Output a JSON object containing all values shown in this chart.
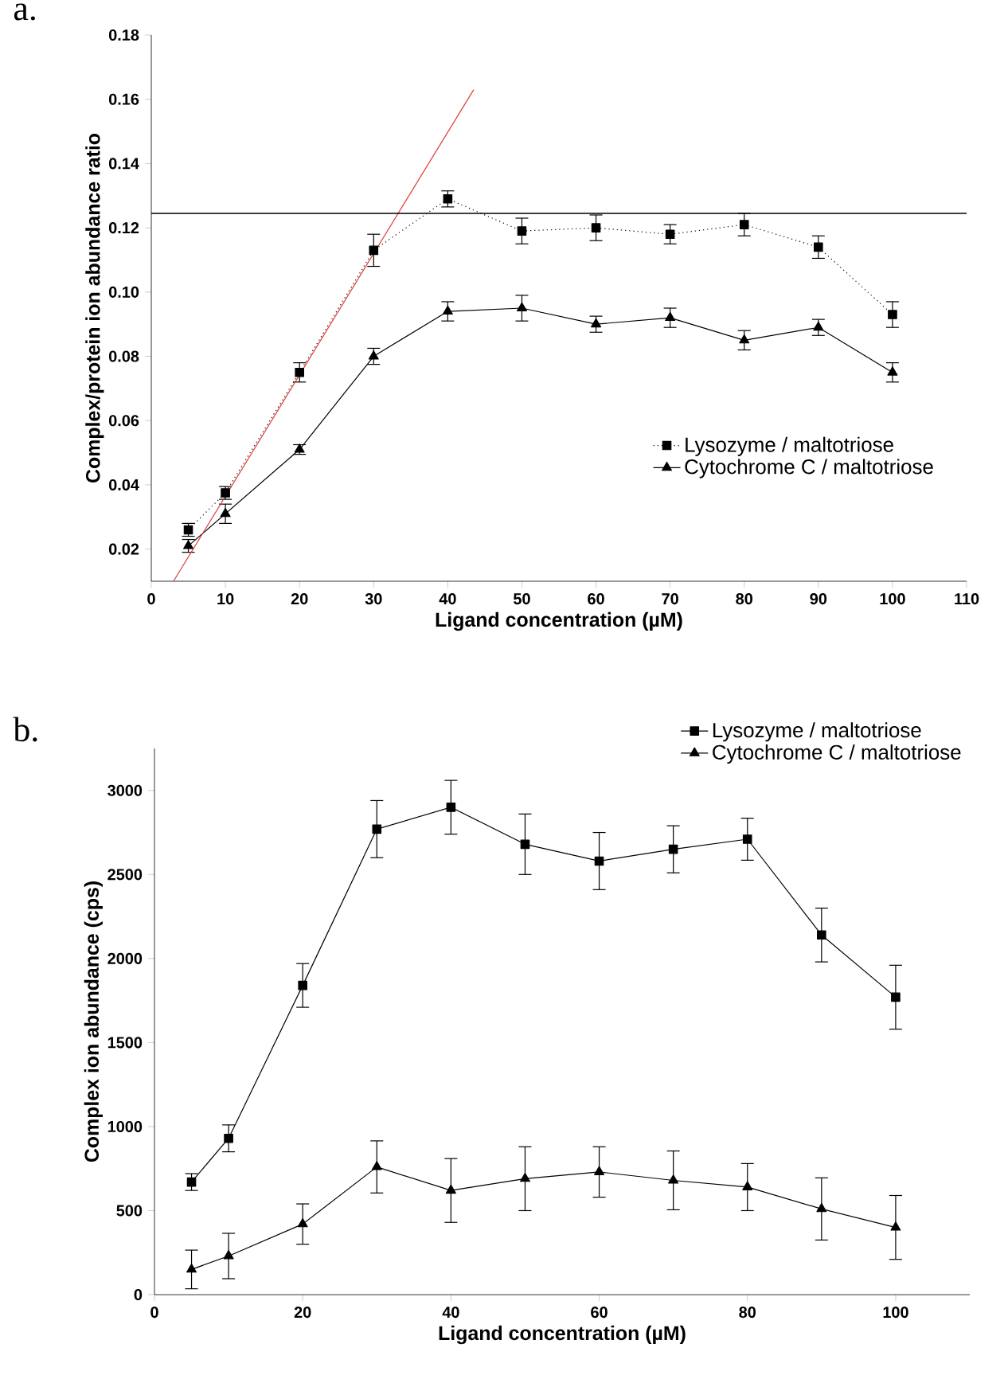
{
  "chart_data": [
    {
      "type": "line",
      "title": "a.",
      "xlabel": "Ligand concentration (µM)",
      "ylabel": "Complex/protein ion abundance ratio",
      "xlim": [
        0,
        110
      ],
      "xticks": [
        0,
        10,
        20,
        30,
        40,
        50,
        60,
        70,
        80,
        90,
        100,
        110
      ],
      "ylim": [
        0.01,
        0.18
      ],
      "yticks": [
        {
          "value": 0.02,
          "label": "0.02"
        },
        {
          "value": 0.04,
          "label": "0.04"
        },
        {
          "value": 0.06,
          "label": "0.06"
        },
        {
          "value": 0.08,
          "label": "0.08"
        },
        {
          "value": 0.1,
          "label": "0.10"
        },
        {
          "value": 0.12,
          "label": "0.12"
        },
        {
          "value": 0.14,
          "label": "0.14"
        },
        {
          "value": 0.16,
          "label": "0.16"
        },
        {
          "value": 0.18,
          "label": "0.18"
        }
      ],
      "legend": "bottom right",
      "x": [
        5,
        10,
        20,
        30,
        40,
        50,
        60,
        70,
        80,
        90,
        100
      ],
      "ref_lines": [
        {
          "axis": "y",
          "value": 0.1245,
          "color": "#000000"
        }
      ],
      "series": [
        {
          "name": "Lysozyme / maltotriose",
          "color": "#000000",
          "marker": "square",
          "line_style": "dotted",
          "values": [
            0.026,
            0.0375,
            0.075,
            0.113,
            0.129,
            0.119,
            0.12,
            0.118,
            0.121,
            0.114,
            0.093
          ],
          "errors": [
            0.002,
            0.002,
            0.003,
            0.005,
            0.0025,
            0.004,
            0.004,
            0.003,
            0.0035,
            0.0035,
            0.004
          ]
        },
        {
          "name": "Cytochrome C / maltotriose",
          "color": "#000000",
          "marker": "triangle",
          "line_style": "solid",
          "values": [
            0.021,
            0.031,
            0.051,
            0.08,
            0.094,
            0.095,
            0.09,
            0.092,
            0.085,
            0.089,
            0.075
          ],
          "errors": [
            0.002,
            0.003,
            0.0015,
            0.0025,
            0.003,
            0.004,
            0.0025,
            0.003,
            0.003,
            0.0025,
            0.003
          ]
        },
        {
          "type": "line",
          "color": "#e03c3c",
          "marker": "none",
          "line_style": "solid",
          "x": [
            3,
            43.5
          ],
          "values": [
            0.01,
            0.163
          ]
        }
      ]
    },
    {
      "type": "line",
      "title": "b.",
      "xlabel": "Ligand concentration (µM)",
      "ylabel": "Complex ion abundance (cps)",
      "xlim": [
        0,
        110
      ],
      "xticks": [
        0,
        20,
        40,
        60,
        80,
        100
      ],
      "ylim": [
        0,
        3250
      ],
      "yticks": [
        0,
        500,
        1000,
        1500,
        2000,
        2500,
        3000
      ],
      "legend": "top right",
      "x": [
        5,
        10,
        20,
        30,
        40,
        50,
        60,
        70,
        80,
        90,
        100
      ],
      "series": [
        {
          "name": "Lysozyme / maltotriose",
          "color": "#000000",
          "marker": "square",
          "line_style": "solid",
          "values": [
            670,
            930,
            1840,
            2770,
            2900,
            2680,
            2580,
            2650,
            2710,
            2140,
            1770
          ],
          "errors": [
            50,
            80,
            130,
            170,
            160,
            180,
            170,
            140,
            125,
            160,
            190
          ]
        },
        {
          "name": "Cytochrome C / maltotriose",
          "color": "#000000",
          "marker": "triangle",
          "line_style": "solid",
          "values": [
            150,
            230,
            420,
            760,
            620,
            690,
            730,
            680,
            640,
            510,
            400
          ],
          "errors": [
            115,
            135,
            120,
            155,
            190,
            190,
            150,
            175,
            140,
            185,
            190
          ]
        }
      ]
    }
  ]
}
